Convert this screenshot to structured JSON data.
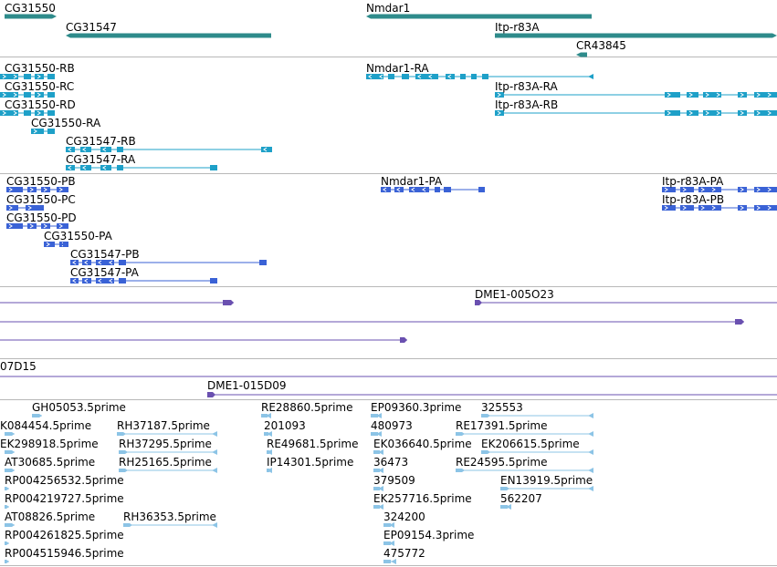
{
  "colors": {
    "gene": "#2e8b8b",
    "transcript": "#1ea0c8",
    "protein": "#3a62d6",
    "clone": "#6a50b0",
    "est": "#8cc4e6",
    "separator": "#b8b8b8"
  },
  "tracks": {
    "genes": [
      {
        "name": "CG31550",
        "feature": "gene"
      },
      {
        "name": "CG31547",
        "feature": "gene"
      },
      {
        "name": "Nmdar1",
        "feature": "gene"
      },
      {
        "name": "Itp-r83A",
        "feature": "gene"
      },
      {
        "name": "CR43845",
        "feature": "gene"
      }
    ],
    "transcripts": [
      {
        "name": "CG31550-RB",
        "feature": "transcript"
      },
      {
        "name": "CG31550-RC",
        "feature": "transcript"
      },
      {
        "name": "CG31550-RD",
        "feature": "transcript"
      },
      {
        "name": "CG31550-RA",
        "feature": "transcript"
      },
      {
        "name": "CG31547-RB",
        "feature": "transcript"
      },
      {
        "name": "CG31547-RA",
        "feature": "transcript"
      },
      {
        "name": "Nmdar1-RA",
        "feature": "transcript"
      },
      {
        "name": "Itp-r83A-RA",
        "feature": "transcript"
      },
      {
        "name": "Itp-r83A-RB",
        "feature": "transcript"
      }
    ],
    "proteins": [
      {
        "name": "CG31550-PB",
        "feature": "protein"
      },
      {
        "name": "CG31550-PC",
        "feature": "protein"
      },
      {
        "name": "CG31550-PD",
        "feature": "protein"
      },
      {
        "name": "CG31550-PA",
        "feature": "protein"
      },
      {
        "name": "CG31547-PB",
        "feature": "protein"
      },
      {
        "name": "CG31547-PA",
        "feature": "protein"
      },
      {
        "name": "Nmdar1-PA",
        "feature": "protein"
      },
      {
        "name": "Itp-r83A-PA",
        "feature": "protein"
      },
      {
        "name": "Itp-r83A-PB",
        "feature": "protein"
      }
    ],
    "clones": [
      {
        "name": "DME1-005O23",
        "feature": "clone"
      },
      {
        "name": "",
        "feature": "clone"
      },
      {
        "name": "",
        "feature": "clone"
      },
      {
        "name": "07D15",
        "feature": "clone"
      },
      {
        "name": "DME1-015D09",
        "feature": "clone"
      }
    ],
    "ests": [
      {
        "name": "GH05053.5prime",
        "feature": "est"
      },
      {
        "name": "K084454.5prime",
        "feature": "est"
      },
      {
        "name": "EK298918.5prime",
        "feature": "est"
      },
      {
        "name": "AT30685.5prime",
        "feature": "est"
      },
      {
        "name": "RP004256532.5prime",
        "feature": "est"
      },
      {
        "name": "RP004219727.5prime",
        "feature": "est"
      },
      {
        "name": "AT08826.5prime",
        "feature": "est"
      },
      {
        "name": "RP004261825.5prime",
        "feature": "est"
      },
      {
        "name": "RP004515946.5prime",
        "feature": "est"
      },
      {
        "name": "RH37187.5prime",
        "feature": "est"
      },
      {
        "name": "RH37295.5prime",
        "feature": "est"
      },
      {
        "name": "RH25165.5prime",
        "feature": "est"
      },
      {
        "name": "RH36353.5prime",
        "feature": "est"
      },
      {
        "name": "RE28860.5prime",
        "feature": "est"
      },
      {
        "name": "201093",
        "feature": "est"
      },
      {
        "name": "RE49681.5prime",
        "feature": "est"
      },
      {
        "name": "IP14301.5prime",
        "feature": "est"
      },
      {
        "name": "EP09360.3prime",
        "feature": "est"
      },
      {
        "name": "480973",
        "feature": "est"
      },
      {
        "name": "EK036640.5prime",
        "feature": "est"
      },
      {
        "name": "36473",
        "feature": "est"
      },
      {
        "name": "379509",
        "feature": "est"
      },
      {
        "name": "EK257716.5prime",
        "feature": "est"
      },
      {
        "name": "324200",
        "feature": "est"
      },
      {
        "name": "EP09154.3prime",
        "feature": "est"
      },
      {
        "name": "475772",
        "feature": "est"
      },
      {
        "name": "325553",
        "feature": "est"
      },
      {
        "name": "RE17391.5prime",
        "feature": "est"
      },
      {
        "name": "EK206615.5prime",
        "feature": "est"
      },
      {
        "name": "RE24595.5prime",
        "feature": "est"
      },
      {
        "name": "EN13919.5prime",
        "feature": "est"
      },
      {
        "name": "562207",
        "feature": "est"
      }
    ]
  }
}
